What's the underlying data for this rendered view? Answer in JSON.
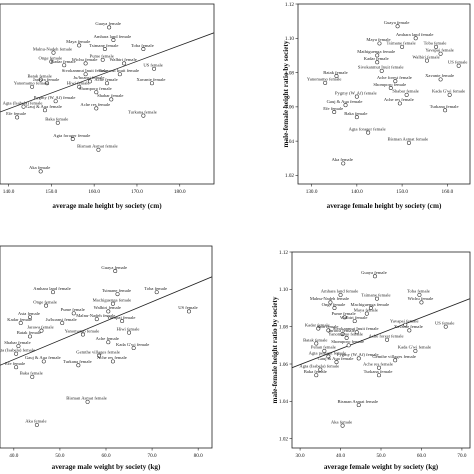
{
  "chart_data": [
    {
      "type": "scatter",
      "panel": "top-left",
      "xlabel": "average male height by society (cm)",
      "ylabel": "",
      "xlim": [
        138,
        188
      ],
      "ylim": [
        1.02,
        1.12
      ],
      "xticks": [
        "140.0",
        "150.0",
        "160.0",
        "170.0",
        "180.0"
      ],
      "yticks": [],
      "points": [
        {
          "label": "Guaya female",
          "x": 163.5,
          "y": 1.107
        },
        {
          "label": "Amhara land female",
          "x": 164.5,
          "y": 1.1
        },
        {
          "label": "Maya female",
          "x": 156.5,
          "y": 1.097
        },
        {
          "label": "Tsimane female",
          "x": 162.5,
          "y": 1.095
        },
        {
          "label": "Toba female",
          "x": 171.5,
          "y": 1.095
        },
        {
          "label": "Malnu-Nadeh female",
          "x": 150.5,
          "y": 1.093
        },
        {
          "label": "Pume female",
          "x": 162.0,
          "y": 1.089
        },
        {
          "label": "Onge female",
          "x": 150.0,
          "y": 1.088
        },
        {
          "label": "Wichu female",
          "x": 158.0,
          "y": 1.087
        },
        {
          "label": "Walbiri female",
          "x": 167.0,
          "y": 1.087
        },
        {
          "label": "Kadar female",
          "x": 153.0,
          "y": 1.086
        },
        {
          "label": "US female",
          "x": 174.0,
          "y": 1.084
        },
        {
          "label": "Sivokanmut Inuit female",
          "x": 158.0,
          "y": 1.081
        },
        {
          "label": "Tawarcut Inuit female",
          "x": 166.0,
          "y": 1.081
        },
        {
          "label": "Batak female",
          "x": 147.5,
          "y": 1.078
        },
        {
          "label": "Jarawa female",
          "x": 149.0,
          "y": 1.076
        },
        {
          "label": "Ju/hoansi female",
          "x": 159.0,
          "y": 1.077
        },
        {
          "label": "Yanomamo female",
          "x": 145.5,
          "y": 1.074
        },
        {
          "label": "Hiwi female",
          "x": 156.5,
          "y": 1.074
        },
        {
          "label": "Ache female",
          "x": 163.0,
          "y": 1.076
        },
        {
          "label": "Xavante female",
          "x": 173.5,
          "y": 1.076
        },
        {
          "label": "Shomporo female",
          "x": 160.5,
          "y": 1.071
        },
        {
          "label": "Shabar female",
          "x": 164.0,
          "y": 1.067
        },
        {
          "label": "Pygmy (W. Af) female",
          "x": 151.0,
          "y": 1.066
        },
        {
          "label": "Agta (Isabela) female",
          "x": 143.5,
          "y": 1.063
        },
        {
          "label": "Gauj & Aua female",
          "x": 148.5,
          "y": 1.061
        },
        {
          "label": "Efe female",
          "x": 142.0,
          "y": 1.057
        },
        {
          "label": "Ache res female",
          "x": 160.5,
          "y": 1.062
        },
        {
          "label": "Baka female",
          "x": 151.5,
          "y": 1.054
        },
        {
          "label": "Turkana female",
          "x": 171.5,
          "y": 1.058
        },
        {
          "label": "Agta forager female",
          "x": 155.0,
          "y": 1.045
        },
        {
          "label": "Bisman Asmat female",
          "x": 161.0,
          "y": 1.039
        },
        {
          "label": "Aka female",
          "x": 147.5,
          "y": 1.027
        }
      ],
      "fit_line": {
        "x": [
          138,
          188
        ],
        "y": [
          1.06,
          1.104
        ]
      }
    },
    {
      "type": "scatter",
      "panel": "top-right",
      "xlabel": "average female height by society (cm)",
      "ylabel": "male-female height ratio by society",
      "xlim": [
        127,
        165
      ],
      "ylim": [
        1.015,
        1.12
      ],
      "xticks": [
        "130.0",
        "140.0",
        "150.0",
        "160.0"
      ],
      "yticks": [
        "1.02",
        "1.04",
        "1.06",
        "1.08",
        "1.10",
        "1.12"
      ],
      "points": [
        {
          "label": "Guaya female",
          "x": 149.0,
          "y": 1.107
        },
        {
          "label": "Amhara land female",
          "x": 153.0,
          "y": 1.1
        },
        {
          "label": "Maya female",
          "x": 145.0,
          "y": 1.097
        },
        {
          "label": "Tsimane female",
          "x": 150.0,
          "y": 1.095
        },
        {
          "label": "Toba female",
          "x": 157.5,
          "y": 1.095
        },
        {
          "label": "Mathiguenga female",
          "x": 144.5,
          "y": 1.09
        },
        {
          "label": "Yavapai female",
          "x": 158.5,
          "y": 1.091
        },
        {
          "label": "Kadar female",
          "x": 144.5,
          "y": 1.086
        },
        {
          "label": "US female",
          "x": 162.5,
          "y": 1.084
        },
        {
          "label": "Walbiri female",
          "x": 155.5,
          "y": 1.087
        },
        {
          "label": "Sivokanmut Inuit female",
          "x": 145.5,
          "y": 1.081
        },
        {
          "label": "Batak female",
          "x": 135.5,
          "y": 1.078
        },
        {
          "label": "Yanomamo female",
          "x": 133.0,
          "y": 1.074
        },
        {
          "label": "Ache forest female",
          "x": 148.5,
          "y": 1.075
        },
        {
          "label": "Shomporo female",
          "x": 147.5,
          "y": 1.071
        },
        {
          "label": "Xavante female",
          "x": 158.5,
          "y": 1.076
        },
        {
          "label": "Shabar female",
          "x": 151.0,
          "y": 1.067
        },
        {
          "label": "Kada G'wi female",
          "x": 160.5,
          "y": 1.067
        },
        {
          "label": "Pygmy (W. Af) female",
          "x": 140.0,
          "y": 1.066
        },
        {
          "label": "Ache res female",
          "x": 149.5,
          "y": 1.062
        },
        {
          "label": "Gauj & Aua female",
          "x": 137.5,
          "y": 1.061
        },
        {
          "label": "Efe female",
          "x": 135.0,
          "y": 1.057
        },
        {
          "label": "Baka female",
          "x": 140.0,
          "y": 1.054
        },
        {
          "label": "Turkana female",
          "x": 159.5,
          "y": 1.058
        },
        {
          "label": "Agta forager female",
          "x": 142.5,
          "y": 1.045
        },
        {
          "label": "Bisman Asmat female",
          "x": 151.5,
          "y": 1.039
        },
        {
          "label": "Aka female",
          "x": 137.0,
          "y": 1.027
        }
      ],
      "fit_line": null
    },
    {
      "type": "scatter",
      "panel": "bottom-left",
      "xlabel": "average male weight by society (kg)",
      "ylabel": "",
      "xlim": [
        37,
        83
      ],
      "ylim": [
        1.015,
        1.12
      ],
      "xticks": [
        "40.0",
        "50.0",
        "60.0",
        "70.0",
        "80.0"
      ],
      "yticks": [],
      "points": [
        {
          "label": "Guaya female",
          "x": 62.0,
          "y": 1.107
        },
        {
          "label": "Toba female",
          "x": 71.0,
          "y": 1.096
        },
        {
          "label": "Amhara land female",
          "x": 48.5,
          "y": 1.096
        },
        {
          "label": "Tsimane female",
          "x": 62.5,
          "y": 1.095
        },
        {
          "label": "Machiguenga female",
          "x": 61.5,
          "y": 1.09
        },
        {
          "label": "Onge female",
          "x": 47.0,
          "y": 1.089
        },
        {
          "label": "US female",
          "x": 78.0,
          "y": 1.086
        },
        {
          "label": "Pume female",
          "x": 53.0,
          "y": 1.085
        },
        {
          "label": "Asta female",
          "x": 43.5,
          "y": 1.083
        },
        {
          "label": "Walbiri female",
          "x": 60.5,
          "y": 1.086
        },
        {
          "label": "Malnu-Nadeh female",
          "x": 58.0,
          "y": 1.082
        },
        {
          "label": "Kadar female",
          "x": 41.5,
          "y": 1.08
        },
        {
          "label": "Ju/hoansi female",
          "x": 50.5,
          "y": 1.08
        },
        {
          "label": "Yavapai female",
          "x": 63.5,
          "y": 1.081
        },
        {
          "label": "Jarawa female",
          "x": 46.0,
          "y": 1.076
        },
        {
          "label": "Batak female",
          "x": 43.5,
          "y": 1.073
        },
        {
          "label": "Yanomamo female",
          "x": 55.0,
          "y": 1.074
        },
        {
          "label": "Hiwi female",
          "x": 65.0,
          "y": 1.075
        },
        {
          "label": "Shabar female",
          "x": 41.0,
          "y": 1.068
        },
        {
          "label": "Ache female",
          "x": 60.5,
          "y": 1.07
        },
        {
          "label": "Kada G'wi female",
          "x": 66.0,
          "y": 1.067
        },
        {
          "label": "Agta (Isabela) female",
          "x": 40.5,
          "y": 1.064
        },
        {
          "label": "Gauj & Aua female",
          "x": 46.5,
          "y": 1.06
        },
        {
          "label": "Gemthe villages female",
          "x": 58.5,
          "y": 1.063
        },
        {
          "label": "Ache res female",
          "x": 61.5,
          "y": 1.06
        },
        {
          "label": "Efe female",
          "x": 40.5,
          "y": 1.057
        },
        {
          "label": "Turkana female",
          "x": 54.0,
          "y": 1.058
        },
        {
          "label": "Baka female",
          "x": 44.0,
          "y": 1.052
        },
        {
          "label": "Bisman Asmat female",
          "x": 56.0,
          "y": 1.039
        },
        {
          "label": "Aka female",
          "x": 45.0,
          "y": 1.027
        }
      ],
      "fit_line": {
        "x": [
          37,
          83
        ],
        "y": [
          1.058,
          1.104
        ]
      }
    },
    {
      "type": "scatter",
      "panel": "bottom-right",
      "xlabel": "average female weight by society (kg)",
      "ylabel": "male-female height ratio by society",
      "xlim": [
        28,
        72
      ],
      "ylim": [
        1.015,
        1.12
      ],
      "xticks": [
        "30.0",
        "40.0",
        "50.0",
        "60.0",
        "70.0"
      ],
      "yticks": [
        "1.02",
        "1.04",
        "1.06",
        "1.08",
        "1.10",
        "1.12"
      ],
      "points": [
        {
          "label": "Guaya female",
          "x": 48.5,
          "y": 1.107
        },
        {
          "label": "Toba female",
          "x": 59.5,
          "y": 1.097
        },
        {
          "label": "Wichu female",
          "x": 60.0,
          "y": 1.093
        },
        {
          "label": "Amhara land female",
          "x": 40.0,
          "y": 1.097
        },
        {
          "label": "Tsimane female",
          "x": 49.0,
          "y": 1.095
        },
        {
          "label": "Malnu-Nadeh female",
          "x": 37.5,
          "y": 1.093
        },
        {
          "label": "Machiguenga female",
          "x": 47.5,
          "y": 1.09
        },
        {
          "label": "Onge female",
          "x": 38.5,
          "y": 1.09
        },
        {
          "label": "Maya female",
          "x": 46.5,
          "y": 1.087
        },
        {
          "label": "Pume female",
          "x": 41.0,
          "y": 1.085
        },
        {
          "label": "Walbiri female",
          "x": 43.5,
          "y": 1.083
        },
        {
          "label": "Kadar female",
          "x": 34.5,
          "y": 1.079
        },
        {
          "label": "Yavapai female",
          "x": 56.0,
          "y": 1.081
        },
        {
          "label": "US female",
          "x": 66.0,
          "y": 1.08
        },
        {
          "label": "Asta female",
          "x": 37.0,
          "y": 1.078
        },
        {
          "label": "Jarawa female",
          "x": 40.5,
          "y": 1.076
        },
        {
          "label": "Sivokanmut Inuit female",
          "x": 44.0,
          "y": 1.077
        },
        {
          "label": "Xavante female",
          "x": 57.0,
          "y": 1.078
        },
        {
          "label": "Yanomamo female",
          "x": 41.5,
          "y": 1.074
        },
        {
          "label": "Batak female",
          "x": 34.0,
          "y": 1.071
        },
        {
          "label": "Ache forest female",
          "x": 51.5,
          "y": 1.073
        },
        {
          "label": "Penan female",
          "x": 36.0,
          "y": 1.067
        },
        {
          "label": "Shomporo female",
          "x": 42.0,
          "y": 1.07
        },
        {
          "label": "Kada G'wi female",
          "x": 58.5,
          "y": 1.067
        },
        {
          "label": "Agta peasant female",
          "x": 37.0,
          "y": 1.064
        },
        {
          "label": "Gauj & Aua female",
          "x": 39.0,
          "y": 1.061
        },
        {
          "label": "Pygmy (W. Af) female",
          "x": 44.5,
          "y": 1.063
        },
        {
          "label": "Gemthe villages female",
          "x": 53.5,
          "y": 1.062
        },
        {
          "label": "Agta (Isabela) female",
          "x": 35.0,
          "y": 1.057
        },
        {
          "label": "Ache res female",
          "x": 49.5,
          "y": 1.058
        },
        {
          "label": "Baka female",
          "x": 34.0,
          "y": 1.054
        },
        {
          "label": "Turkana female",
          "x": 49.5,
          "y": 1.054
        },
        {
          "label": "Bisman Asmat female",
          "x": 44.5,
          "y": 1.038
        },
        {
          "label": "Aka female",
          "x": 40.5,
          "y": 1.027
        }
      ],
      "fit_line": {
        "x": [
          28,
          72
        ],
        "y": [
          1.058,
          1.095
        ]
      }
    }
  ]
}
